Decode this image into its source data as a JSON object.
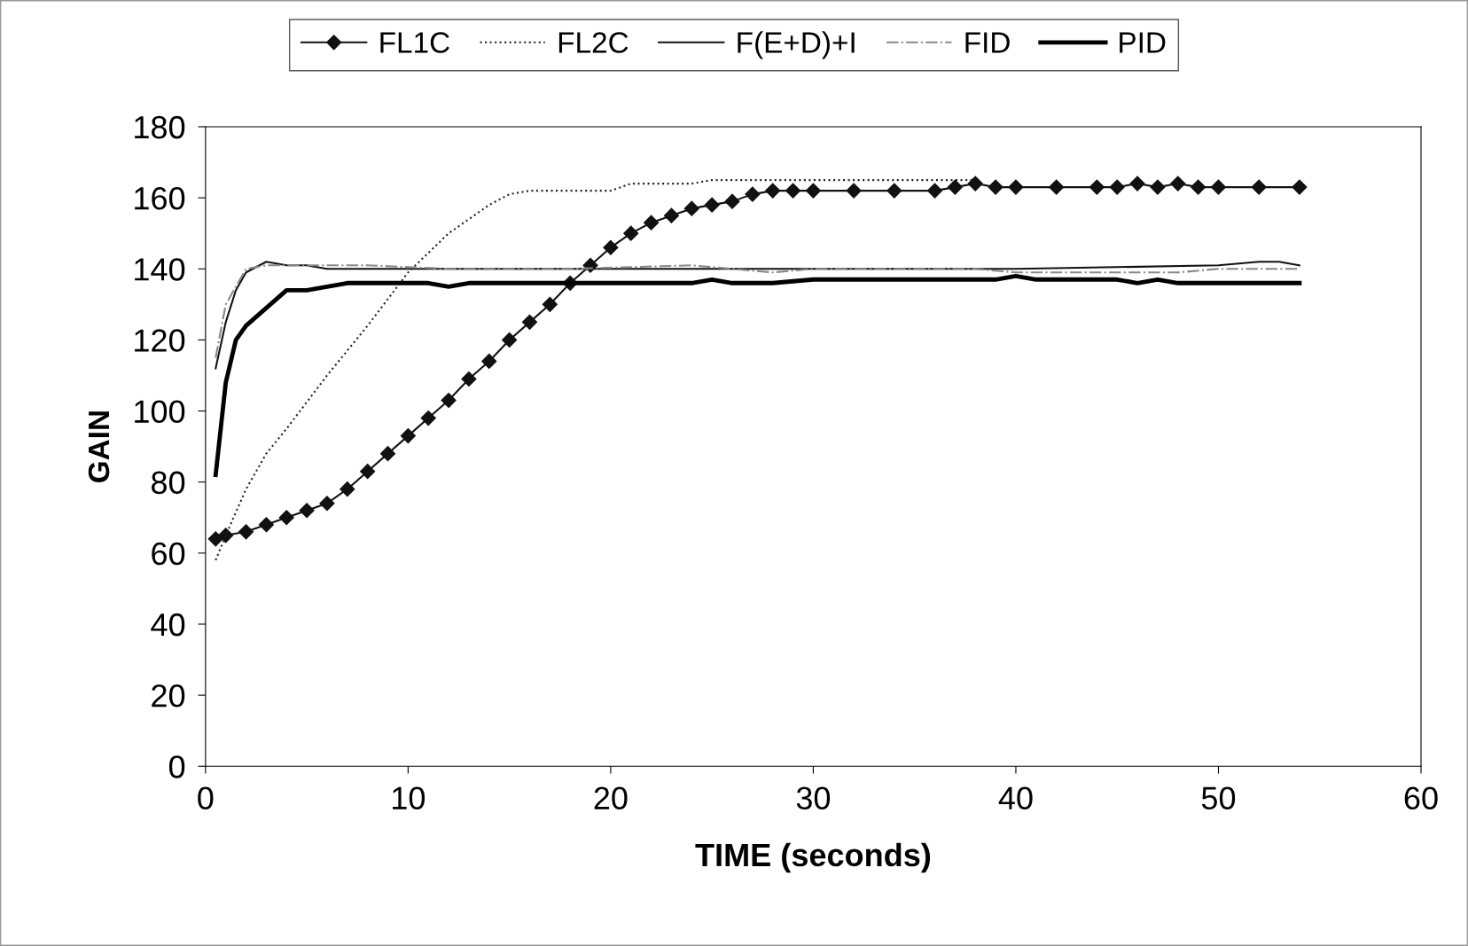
{
  "chart_data": {
    "type": "line",
    "xlabel": "TIME (seconds)",
    "ylabel": "GAIN",
    "xlim": [
      0,
      60
    ],
    "xticks": [
      0,
      10,
      20,
      30,
      40,
      50,
      60
    ],
    "ylim": [
      0,
      180
    ],
    "yticks": [
      0,
      20,
      40,
      60,
      80,
      100,
      120,
      140,
      160,
      180
    ],
    "grid": false,
    "legend": "top",
    "series": [
      {
        "name": "FL1C",
        "color": "#111111",
        "marker": "diamond",
        "line_style": "solid",
        "x": [
          0.5,
          1,
          2,
          3,
          4,
          5,
          6,
          7,
          8,
          9,
          10,
          11,
          12,
          13,
          14,
          15,
          16,
          17,
          18,
          19,
          20,
          21,
          22,
          23,
          24,
          25,
          26,
          27,
          28,
          29,
          30,
          32,
          34,
          36,
          37,
          38,
          39,
          40,
          42,
          44,
          45,
          46,
          47,
          48,
          49,
          50,
          52,
          54
        ],
        "values": [
          64,
          65,
          66,
          68,
          70,
          72,
          74,
          78,
          83,
          88,
          93,
          98,
          103,
          109,
          114,
          120,
          125,
          130,
          136,
          141,
          146,
          150,
          153,
          155,
          157,
          158,
          159,
          161,
          162,
          162,
          162,
          162,
          162,
          162,
          163,
          164,
          163,
          163,
          163,
          163,
          163,
          164,
          163,
          164,
          163,
          163,
          163,
          163
        ]
      },
      {
        "name": "FL2C",
        "color": "#222222",
        "marker": "none",
        "line_style": "dotted",
        "x": [
          0.5,
          1,
          2,
          3,
          4,
          6,
          8,
          10,
          12,
          14,
          15,
          16,
          18,
          20,
          21,
          22,
          24,
          25,
          30,
          38
        ],
        "values": [
          58,
          65,
          78,
          88,
          95,
          110,
          124,
          139,
          150,
          158,
          161,
          162,
          162,
          162,
          164,
          164,
          164,
          165,
          165,
          165
        ]
      },
      {
        "name": "F(E+D)+I",
        "color": "#111111",
        "marker": "none",
        "line_style": "solid",
        "x": [
          0.5,
          1,
          1.5,
          2,
          3,
          4,
          5,
          6,
          10,
          20,
          30,
          40,
          50,
          52,
          53,
          54
        ],
        "values": [
          112,
          125,
          134,
          139,
          142,
          141,
          141,
          140,
          140,
          140,
          140,
          140,
          141,
          142,
          142,
          141
        ]
      },
      {
        "name": "FID",
        "color": "#888888",
        "marker": "none",
        "line_style": "dashdot",
        "x": [
          0.5,
          1,
          2,
          3,
          6,
          8,
          12,
          18,
          24,
          28,
          30,
          38,
          40,
          48,
          50,
          54
        ],
        "values": [
          115,
          130,
          140,
          141,
          141,
          141,
          140,
          140,
          141,
          139,
          140,
          140,
          139,
          139,
          140,
          140
        ]
      },
      {
        "name": "PID",
        "color": "#000000",
        "marker": "none",
        "line_style": "solid",
        "x": [
          0.5,
          1,
          1.5,
          2,
          3,
          4,
          5,
          6,
          7,
          11,
          12,
          13,
          24,
          25,
          26,
          28,
          30,
          39,
          40,
          41,
          45,
          46,
          47,
          48,
          54
        ],
        "values": [
          82,
          108,
          120,
          124,
          129,
          134,
          134,
          135,
          136,
          136,
          135,
          136,
          136,
          137,
          136,
          136,
          137,
          137,
          138,
          137,
          137,
          136,
          137,
          136,
          136
        ]
      }
    ]
  }
}
